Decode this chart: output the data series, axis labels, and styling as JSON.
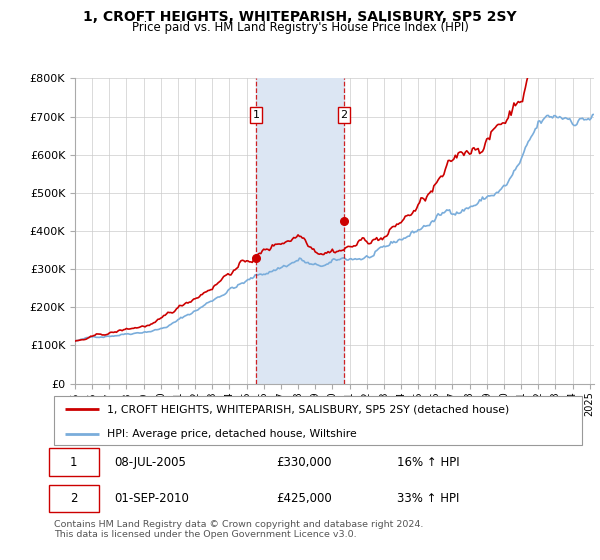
{
  "title": "1, CROFT HEIGHTS, WHITEPARISH, SALISBURY, SP5 2SY",
  "subtitle": "Price paid vs. HM Land Registry's House Price Index (HPI)",
  "sale1_year": 2005.54,
  "sale1_price": 330000,
  "sale2_year": 2010.67,
  "sale2_price": 425000,
  "sale1_label": "1",
  "sale2_label": "2",
  "legend_line1": "1, CROFT HEIGHTS, WHITEPARISH, SALISBURY, SP5 2SY (detached house)",
  "legend_line2": "HPI: Average price, detached house, Wiltshire",
  "table_row1": [
    "1",
    "08-JUL-2005",
    "£330,000",
    "16% ↑ HPI"
  ],
  "table_row2": [
    "2",
    "01-SEP-2010",
    "£425,000",
    "33% ↑ HPI"
  ],
  "footnote": "Contains HM Land Registry data © Crown copyright and database right 2024.\nThis data is licensed under the Open Government Licence v3.0.",
  "hpi_color": "#7aaddb",
  "property_color": "#cc0000",
  "shade_color": "#dce6f3",
  "ylim": [
    0,
    800000
  ],
  "yticks": [
    0,
    100000,
    200000,
    300000,
    400000,
    500000,
    600000,
    700000,
    800000
  ],
  "xlim_start": 1995.0,
  "xlim_end": 2025.25,
  "bg_color": "#ffffff"
}
